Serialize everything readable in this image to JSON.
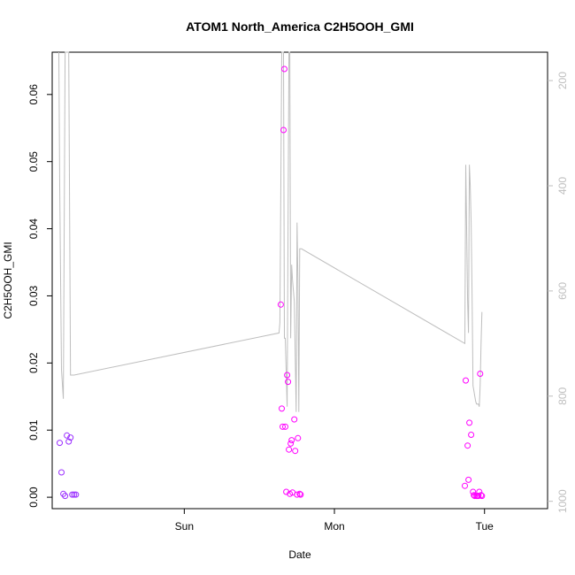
{
  "chart_data": {
    "type": "scatter",
    "title": "ATOM1 North_America C2H5OOH_GMI",
    "xlabel": "Date",
    "ylabel": "C2H5OOH_GMI",
    "xlim": [
      -0.38,
      2.92
    ],
    "ylim": [
      -0.0017,
      0.0663
    ],
    "x_ticks": [
      {
        "value": 0.5,
        "label": "Sun"
      },
      {
        "value": 1.5,
        "label": "Mon"
      },
      {
        "value": 2.5,
        "label": "Tue"
      }
    ],
    "y_ticks": [
      {
        "value": 0.0,
        "label": "0.00"
      },
      {
        "value": 0.01,
        "label": "0.01"
      },
      {
        "value": 0.02,
        "label": "0.02"
      },
      {
        "value": 0.03,
        "label": "0.03"
      },
      {
        "value": 0.04,
        "label": "0.04"
      },
      {
        "value": 0.05,
        "label": "0.05"
      },
      {
        "value": 0.06,
        "label": "0.06"
      }
    ],
    "y2lim": [
      1014,
      146
    ],
    "y2_ticks": [
      {
        "value": 200,
        "label": "200"
      },
      {
        "value": 400,
        "label": "400"
      },
      {
        "value": 600,
        "label": "600"
      },
      {
        "value": 800,
        "label": "800"
      },
      {
        "value": 1000,
        "label": "1000"
      }
    ],
    "colors": {
      "line": "#bebebe",
      "points_early": "#9b30ff",
      "points_late": "#ff00ff",
      "axis": "#000000",
      "axis_right": "#bebebe"
    },
    "pressure_line": {
      "x": [
        -0.336,
        -0.33,
        -0.318,
        -0.306,
        -0.294,
        -0.282,
        -0.27,
        -0.258,
        -0.246,
        -0.234,
        1.131,
        1.137,
        1.149,
        1.161,
        1.167,
        1.173,
        1.185,
        1.197,
        1.203,
        1.209,
        1.215,
        1.221,
        1.233,
        1.245,
        1.251,
        1.257,
        1.263,
        1.269,
        1.281,
        2.369,
        2.375,
        2.381,
        2.387,
        2.393,
        2.399,
        2.405,
        2.411,
        2.417,
        2.423,
        2.429,
        2.435,
        2.441,
        2.447,
        2.453,
        2.459,
        2.465,
        2.471,
        2.477,
        2.483
      ],
      "y": [
        146,
        400,
        750,
        805,
        146,
        146,
        146,
        760,
        760,
        760,
        680,
        660,
        146,
        146,
        690,
        690,
        820,
        146,
        146,
        690,
        550,
        580,
        620,
        830,
        470,
        580,
        830,
        520,
        520,
        700,
        360,
        480,
        620,
        680,
        360,
        400,
        470,
        600,
        780,
        790,
        800,
        810,
        815,
        815,
        815,
        820,
        780,
        700,
        640
      ]
    },
    "series": [
      {
        "x": [
          -0.33,
          -0.318,
          -0.306,
          -0.294,
          -0.282,
          -0.27,
          -0.258,
          -0.246,
          -0.234,
          -0.222
        ],
        "y": [
          0.0081,
          0.0037,
          0.0005,
          0.0002,
          0.0092,
          0.0083,
          0.0089,
          0.0004,
          0.0004,
          0.0004
        ]
      },
      {
        "x": [
          1.143,
          1.149,
          1.155,
          1.161,
          1.167,
          1.173,
          1.179,
          1.185,
          1.191,
          1.197,
          1.203,
          1.209,
          1.215,
          1.221,
          1.233,
          1.239,
          1.251,
          1.257,
          1.269,
          1.275
        ],
        "y": [
          0.0287,
          0.0132,
          0.0105,
          0.0547,
          0.0638,
          0.0105,
          0.0008,
          0.0182,
          0.0172,
          0.0071,
          0.0005,
          0.008,
          0.0085,
          0.0007,
          0.0116,
          0.0069,
          0.0004,
          0.0088,
          0.0005,
          0.0004
        ]
      },
      {
        "x": [
          2.369,
          2.375,
          2.387,
          2.393,
          2.399,
          2.411,
          2.423,
          2.429,
          2.435,
          2.447,
          2.453,
          2.459,
          2.465,
          2.471,
          2.477,
          2.483
        ],
        "y": [
          0.0017,
          0.0174,
          0.0077,
          0.0026,
          0.0111,
          0.0093,
          0.0008,
          0.0003,
          0.0002,
          0.0002,
          0.0002,
          0.0002,
          0.0008,
          0.0184,
          0.0003,
          0.0002
        ]
      }
    ]
  }
}
